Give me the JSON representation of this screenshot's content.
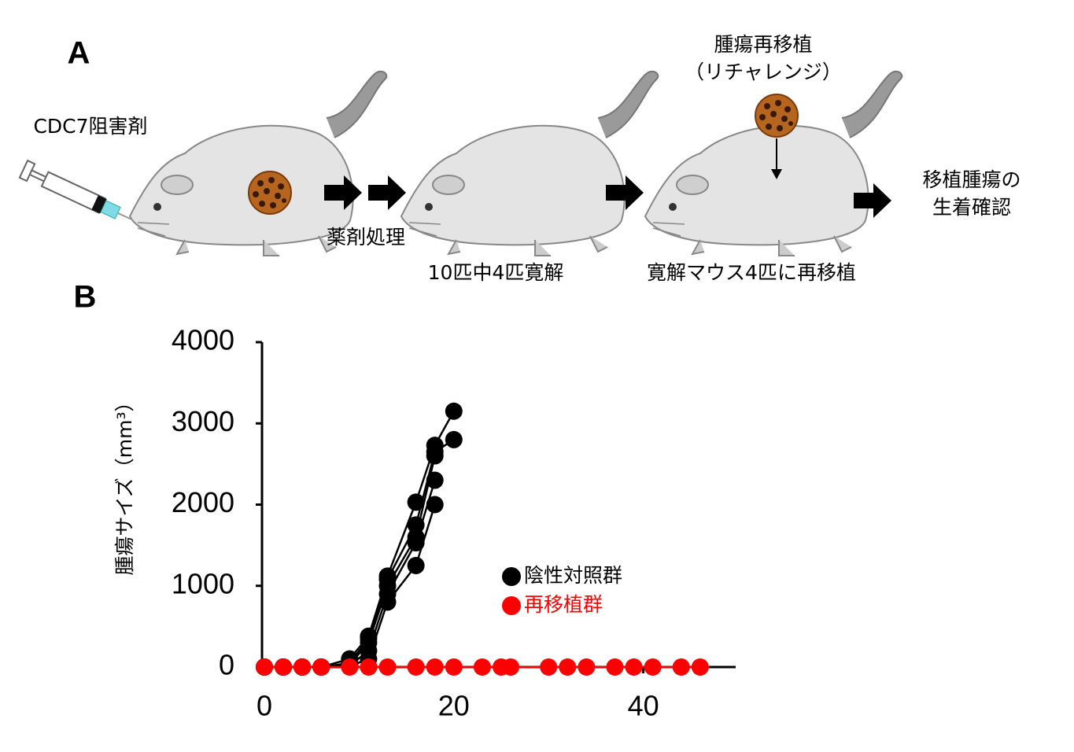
{
  "diagram": {
    "panel_a": "A",
    "drug": "CDC7阻害剤",
    "treatment": "薬剤処理",
    "remission": "10匹中4匹寛解",
    "rechallenge_title": "腫瘍再移植",
    "rechallenge_sub": "（リチャレンジ）",
    "retransplant": "寛解マウス4匹に再移植",
    "confirm_1": "移植腫瘍の",
    "confirm_2": "生着確認"
  },
  "chart_data": {
    "type": "line",
    "panel": "B",
    "y_label": "腫瘍サイズ（mm³）",
    "xlim": [
      0,
      50
    ],
    "xticks": [
      0,
      20,
      40
    ],
    "ylim": [
      0,
      4000
    ],
    "yticks": [
      0,
      1000,
      2000,
      3000,
      4000
    ],
    "series": [
      {
        "name": "陰性対照群",
        "color": "#000000",
        "x": [
          0,
          2,
          4,
          6,
          9,
          11,
          13,
          16,
          18,
          20
        ],
        "values": [
          [
            0,
            0,
            0,
            0,
            100,
            380,
            1120,
            2030,
            2730,
            3150
          ],
          [
            0,
            0,
            0,
            0,
            50,
            350,
            1080,
            1750,
            2650,
            2800
          ],
          [
            0,
            0,
            0,
            0,
            30,
            300,
            1000,
            1600,
            2600,
            null
          ],
          [
            0,
            0,
            0,
            0,
            20,
            200,
            900,
            1530,
            2300,
            null
          ],
          [
            0,
            0,
            0,
            0,
            10,
            100,
            800,
            1250,
            2000,
            null
          ]
        ]
      },
      {
        "name": "再移植群",
        "color": "#ff0000",
        "x": [
          0,
          2,
          4,
          6,
          9,
          11,
          13,
          16,
          18,
          20,
          23,
          25,
          26,
          30,
          32,
          34,
          37,
          39,
          41,
          44,
          46
        ],
        "values": [
          [
            0,
            0,
            0,
            0,
            0,
            0,
            0,
            0,
            0,
            0,
            0,
            0,
            0,
            0,
            0,
            0,
            0,
            0,
            0,
            0,
            0
          ]
        ]
      }
    ]
  }
}
